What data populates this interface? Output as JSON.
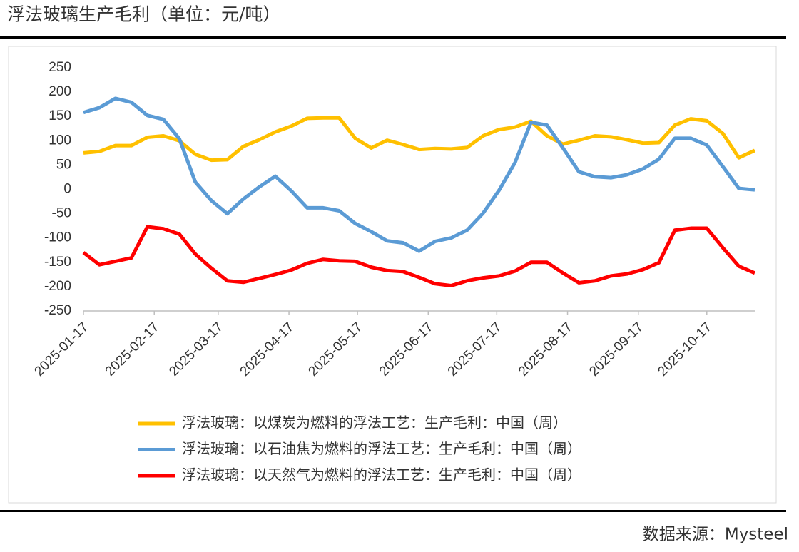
{
  "chart_data": {
    "type": "line",
    "title": "浮法玻璃生产毛利（单位：元/吨）",
    "source": "数据来源：Mysteel",
    "legend": "bottom",
    "x": [
      "2025-01-17",
      "2025-01-24",
      "2025-01-31",
      "2025-02-07",
      "2025-02-14",
      "2025-02-21",
      "2025-02-28",
      "2025-03-07",
      "2025-03-14",
      "2025-03-21",
      "2025-03-28",
      "2025-04-04",
      "2025-04-11",
      "2025-04-18",
      "2025-04-25",
      "2025-05-02",
      "2025-05-09",
      "2025-05-16",
      "2025-05-23",
      "2025-05-30",
      "2025-06-06",
      "2025-06-13",
      "2025-06-20",
      "2025-06-27",
      "2025-07-04",
      "2025-07-11",
      "2025-07-18",
      "2025-07-25",
      "2025-08-01",
      "2025-08-08",
      "2025-08-15",
      "2025-08-22",
      "2025-08-29",
      "2025-09-05",
      "2025-09-12",
      "2025-09-19",
      "2025-09-26",
      "2025-10-03",
      "2025-10-10",
      "2025-10-17",
      "2025-10-24",
      "2025-10-31",
      "2025-11-07"
    ],
    "xlim": [
      "2025-01-17",
      "2025-11-07"
    ],
    "xticks": [
      "2025-01-17",
      "2025-02-17",
      "2025-03-17",
      "2025-04-17",
      "2025-05-17",
      "2025-06-17",
      "2025-07-17",
      "2025-08-17",
      "2025-09-17",
      "2025-10-17"
    ],
    "ylim": [
      -250,
      250
    ],
    "yticks": [
      -250,
      -200,
      -150,
      -100,
      -50,
      0,
      50,
      100,
      150,
      200,
      250
    ],
    "series": [
      {
        "name": "浮法玻璃：以煤炭为燃料的浮法工艺：生产毛利：中国（周）",
        "color": "#FFC000",
        "values": [
          75,
          78,
          90,
          90,
          107,
          110,
          100,
          72,
          60,
          61,
          88,
          102,
          118,
          130,
          146,
          147,
          147,
          105,
          85,
          101,
          92,
          82,
          84,
          83,
          86,
          110,
          123,
          128,
          140,
          110,
          93,
          101,
          110,
          108,
          102,
          95,
          96,
          132,
          145,
          141,
          115,
          65,
          80
        ]
      },
      {
        "name": "浮法玻璃：以石油焦为燃料的浮法工艺：生产毛利：中国（周）",
        "color": "#5B9BD5",
        "values": [
          158,
          168,
          187,
          179,
          152,
          144,
          104,
          15,
          -23,
          -50,
          -20,
          5,
          27,
          -3,
          -38,
          -38,
          -44,
          -70,
          -87,
          -106,
          -110,
          -127,
          -107,
          -100,
          -84,
          -49,
          -2,
          55,
          138,
          132,
          85,
          36,
          26,
          24,
          30,
          42,
          62,
          105,
          105,
          91,
          47,
          2,
          -1
        ]
      },
      {
        "name": "浮法玻璃：以天然气为燃料的浮法工艺：生产毛利：中国（周）",
        "color": "#FF0000",
        "values": [
          -130,
          -155,
          -148,
          -141,
          -77,
          -81,
          -92,
          -133,
          -162,
          -188,
          -191,
          -183,
          -175,
          -166,
          -152,
          -144,
          -147,
          -148,
          -160,
          -167,
          -169,
          -181,
          -194,
          -198,
          -188,
          -182,
          -178,
          -168,
          -150,
          -150,
          -172,
          -192,
          -188,
          -178,
          -174,
          -165,
          -151,
          -84,
          -80,
          -80,
          -120,
          -158,
          -172
        ]
      }
    ]
  }
}
